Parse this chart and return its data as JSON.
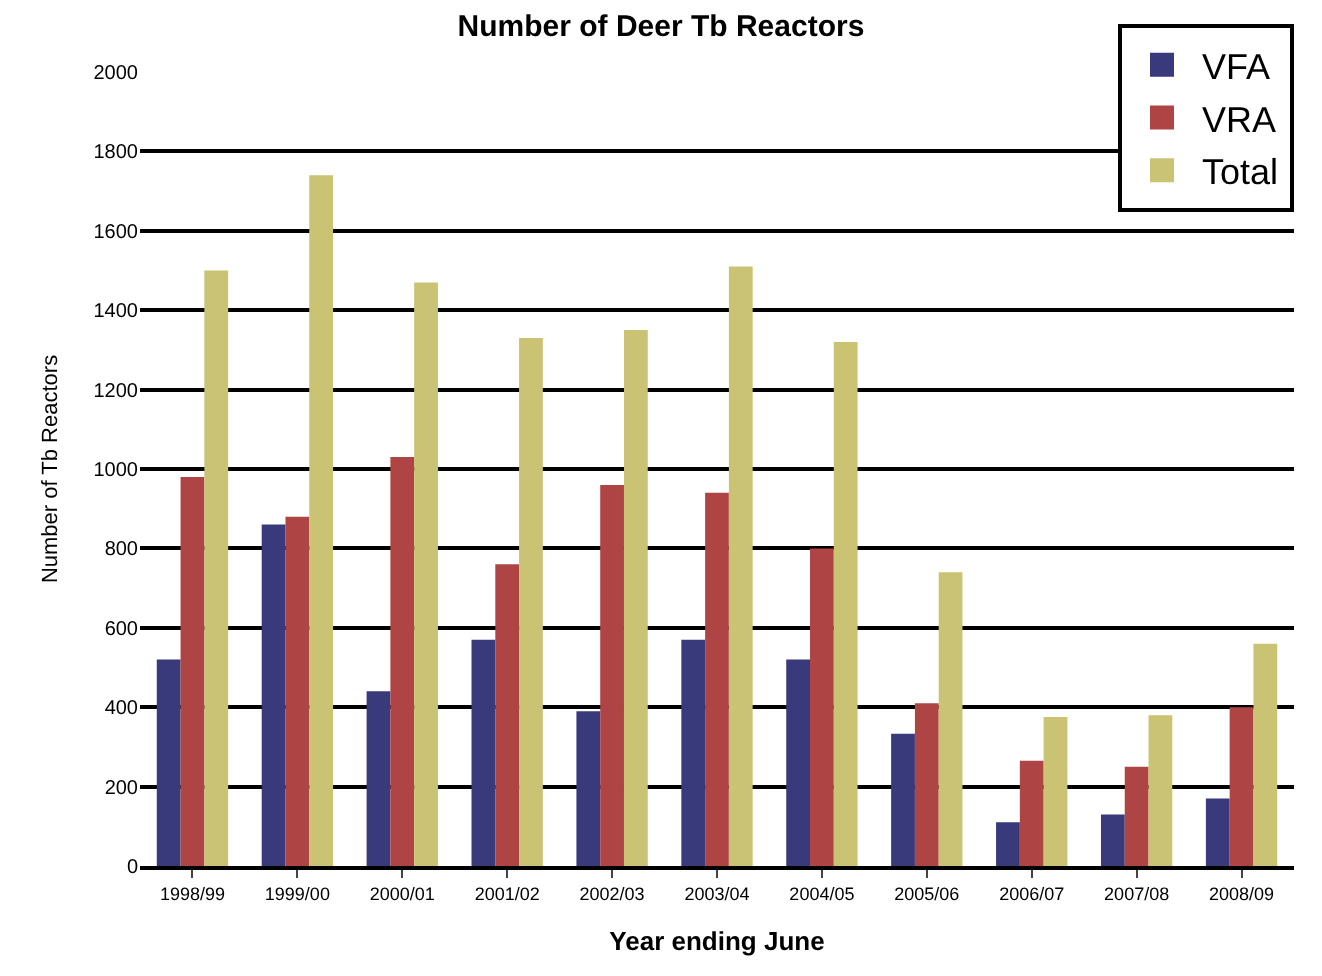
{
  "chart_data": {
    "type": "bar",
    "title": "Number of Deer Tb Reactors",
    "xlabel": "Year ending June",
    "ylabel": "Number of Tb Reactors",
    "categories": [
      "1998/99",
      "1999/00",
      "2000/01",
      "2001/02",
      "2002/03",
      "2003/04",
      "2004/05",
      "2005/06",
      "2006/07",
      "2007/08",
      "2008/09"
    ],
    "series": [
      {
        "name": "VFA",
        "color": "#383a7c",
        "values": [
          520,
          860,
          440,
          570,
          390,
          570,
          520,
          333,
          110,
          130,
          170
        ]
      },
      {
        "name": "VRA",
        "color": "#ae4443",
        "values": [
          980,
          880,
          1030,
          760,
          960,
          940,
          800,
          410,
          265,
          250,
          400
        ]
      },
      {
        "name": "Total",
        "color": "#c9c373",
        "values": [
          1500,
          1740,
          1470,
          1330,
          1350,
          1510,
          1320,
          740,
          375,
          380,
          560
        ]
      }
    ],
    "ylim": [
      0,
      2000
    ],
    "yticks": [
      0,
      200,
      400,
      600,
      800,
      1000,
      1200,
      1400,
      1600,
      1800,
      2000
    ],
    "grid": "y",
    "legend": "top right"
  }
}
